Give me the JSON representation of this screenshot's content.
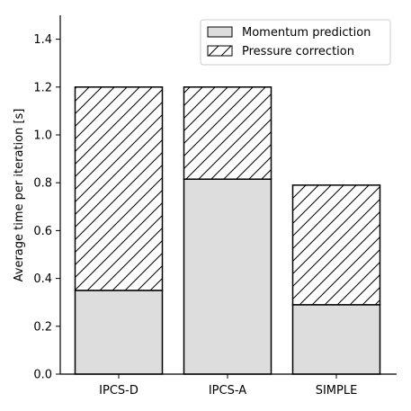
{
  "chart_data": {
    "type": "bar",
    "stacked": true,
    "categories": [
      "IPCS-D",
      "IPCS-A",
      "SIMPLE"
    ],
    "series": [
      {
        "name": "Momentum prediction",
        "values": [
          0.35,
          0.815,
          0.29
        ],
        "fill": "#dddddd",
        "pattern": "solid"
      },
      {
        "name": "Pressure correction",
        "values": [
          0.85,
          0.385,
          0.5
        ],
        "fill": "#ffffff",
        "pattern": "hatch"
      }
    ],
    "title": "",
    "xlabel": "",
    "ylabel": "Average time per iteration [s]",
    "ylim": [
      0,
      1.5
    ],
    "yticks": [
      "0.0",
      "0.2",
      "0.4",
      "0.6",
      "0.8",
      "1.0",
      "1.2",
      "1.4"
    ],
    "legend_position": "top-right",
    "grid": false
  }
}
